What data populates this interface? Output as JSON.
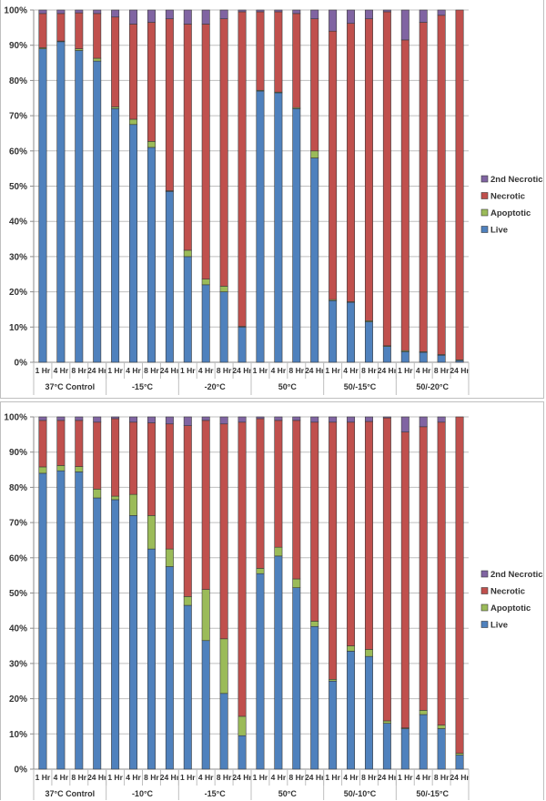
{
  "chart_data": [
    {
      "type": "bar",
      "stacked": true,
      "title": "",
      "xlabel": "",
      "ylabel": "",
      "ylim": [
        0,
        100
      ],
      "y_ticks": [
        "0%",
        "10%",
        "20%",
        "30%",
        "40%",
        "50%",
        "60%",
        "70%",
        "80%",
        "90%",
        "100%"
      ],
      "grid": true,
      "legend_position": "right",
      "groups": [
        "37°C Control",
        "-15°C",
        "-20°C",
        "50°C",
        "50/-15°C",
        "50/-20°C"
      ],
      "categories": [
        "1 Hr",
        "4 Hr",
        "8 Hr",
        "24 Hr"
      ],
      "series": [
        {
          "name": "Live",
          "color": "#4f81bd",
          "values": [
            89,
            91,
            88.5,
            85.5,
            72,
            67.5,
            61,
            48.5,
            30,
            22,
            20,
            10,
            77,
            76.5,
            72,
            58,
            17.5,
            17,
            11.5,
            4.5,
            3,
            2.8,
            2,
            0.5
          ]
        },
        {
          "name": "Apoptotic",
          "color": "#9bbb59",
          "values": [
            0.3,
            0.2,
            0.5,
            0.8,
            0.5,
            1.5,
            1.7,
            0.2,
            1.8,
            1.6,
            1.6,
            0.2,
            0.2,
            0.2,
            0.3,
            2,
            0.3,
            0.2,
            0.3,
            0.2,
            0.3,
            0.2,
            0.2,
            0.2
          ]
        },
        {
          "name": "Necrotic",
          "color": "#c0504d",
          "values": [
            9.7,
            7.8,
            10.2,
            12.7,
            25.5,
            27,
            33.8,
            48.8,
            64.2,
            72.4,
            75.9,
            89.3,
            22.3,
            22.8,
            26.7,
            37.5,
            76.2,
            79,
            85.7,
            94.8,
            88.2,
            93.5,
            96.3,
            99.3
          ]
        },
        {
          "name": "2nd Necrotic",
          "color": "#8064a2",
          "values": [
            1,
            1,
            0.8,
            1,
            2,
            4,
            3.5,
            2.5,
            4,
            4,
            2.5,
            0.5,
            0.5,
            0.5,
            1,
            2.5,
            6,
            3.8,
            2.5,
            0.5,
            8.5,
            3.5,
            1.5,
            0
          ]
        }
      ]
    },
    {
      "type": "bar",
      "stacked": true,
      "title": "",
      "xlabel": "",
      "ylabel": "",
      "ylim": [
        0,
        100
      ],
      "y_ticks": [
        "0%",
        "10%",
        "20%",
        "30%",
        "40%",
        "50%",
        "60%",
        "70%",
        "80%",
        "90%",
        "100%"
      ],
      "grid": true,
      "legend_position": "right",
      "groups": [
        "37°C Control",
        "-10°C",
        "-15°C",
        "50°C",
        "50/-10°C",
        "50/-15°C"
      ],
      "categories": [
        "1 Hr",
        "4 Hr",
        "8 Hr",
        "24 Hr"
      ],
      "series": [
        {
          "name": "Live",
          "color": "#4f81bd",
          "values": [
            84,
            84.7,
            84.4,
            77,
            76.5,
            72,
            62.5,
            57.5,
            46.5,
            36.5,
            21.5,
            9.5,
            55.5,
            60.5,
            51.5,
            40.5,
            25,
            33.5,
            32,
            13,
            11.5,
            15.5,
            11.5,
            4
          ]
        },
        {
          "name": "Apoptotic",
          "color": "#9bbb59",
          "values": [
            1.8,
            1.5,
            1.5,
            2.5,
            1,
            6,
            9.5,
            5,
            2.5,
            14.5,
            15.5,
            5.5,
            1.5,
            2.5,
            2.5,
            1.5,
            0.5,
            1.5,
            2,
            0.7,
            0.2,
            1.2,
            1,
            0.5
          ]
        },
        {
          "name": "Necrotic",
          "color": "#c0504d",
          "values": [
            13.2,
            12.8,
            13.1,
            19,
            22,
            20.5,
            26.3,
            35.5,
            48.5,
            48,
            61,
            83.5,
            42.5,
            36,
            45,
            56.5,
            73,
            63.5,
            64.7,
            86,
            84,
            80.5,
            86,
            95.5
          ]
        },
        {
          "name": "2nd Necrotic",
          "color": "#8064a2",
          "values": [
            1,
            1,
            1,
            1.5,
            0.5,
            1.5,
            1.7,
            2,
            2.5,
            1,
            2,
            1.5,
            0.5,
            1,
            1,
            1.5,
            1.5,
            1.5,
            1.3,
            0.3,
            4.3,
            2.8,
            1.5,
            0
          ]
        }
      ]
    }
  ]
}
